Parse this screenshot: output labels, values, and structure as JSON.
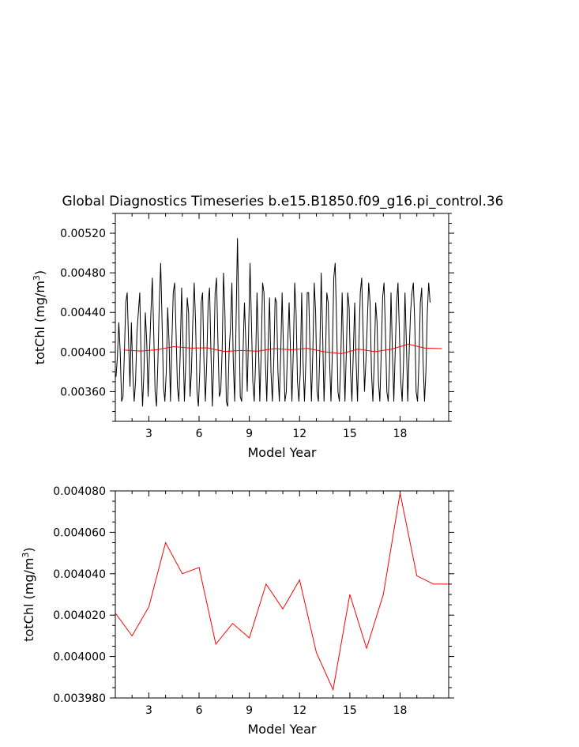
{
  "title": "Global Diagnostics Timeseries b.e15.B1850.f09_g16.pi_control.36",
  "colors": {
    "monthly": "#000000",
    "annual": "#ff0000",
    "axes": "#000000"
  },
  "chart_data": [
    {
      "type": "line",
      "xlabel": "Model Year",
      "ylabel": "totChl (mg/m³)",
      "ylabel_parts": {
        "base": "totChl (mg/m",
        "sup": "3",
        "close": ")"
      },
      "xlim": [
        1,
        20.9
      ],
      "ylim": [
        0.0033,
        0.0054
      ],
      "x_ticks": [
        3,
        6,
        9,
        12,
        15,
        18
      ],
      "x_tick_labels": [
        "3",
        "6",
        "9",
        "12",
        "15",
        "18"
      ],
      "y_ticks": [
        0.0036,
        0.004,
        0.0044,
        0.0048,
        0.0052
      ],
      "y_tick_labels": [
        "0.00360",
        "0.00400",
        "0.00440",
        "0.00480",
        "0.00520"
      ],
      "series": [
        {
          "role": "monthly",
          "color": "#000000",
          "x_start": 1.0417,
          "x_step": 0.083333,
          "values": [
            0.00375,
            0.00395,
            0.0043,
            0.004,
            0.0035,
            0.00355,
            0.004,
            0.0045,
            0.0046,
            0.0041,
            0.00365,
            0.0043,
            0.0038,
            0.0035,
            0.0037,
            0.0042,
            0.0044,
            0.0046,
            0.0039,
            0.00345,
            0.0038,
            0.0044,
            0.0041,
            0.00355,
            0.004,
            0.0044,
            0.00475,
            0.0042,
            0.0036,
            0.00345,
            0.0039,
            0.0045,
            0.0049,
            0.0043,
            0.00365,
            0.0035,
            0.0038,
            0.00445,
            0.0041,
            0.0035,
            0.0041,
            0.0046,
            0.0047,
            0.0042,
            0.00365,
            0.0035,
            0.004,
            0.00465,
            0.0041,
            0.0035,
            0.0039,
            0.00455,
            0.0044,
            0.00355,
            0.0038,
            0.0043,
            0.0047,
            0.0043,
            0.0036,
            0.00345,
            0.0038,
            0.0045,
            0.0046,
            0.0039,
            0.0035,
            0.0039,
            0.0045,
            0.00465,
            0.004,
            0.00345,
            0.0039,
            0.0046,
            0.00475,
            0.0041,
            0.00355,
            0.0036,
            0.004,
            0.0048,
            0.0044,
            0.0035,
            0.00345,
            0.004,
            0.00425,
            0.0047,
            0.0039,
            0.0035,
            0.0043,
            0.00515,
            0.0044,
            0.00355,
            0.0035,
            0.004,
            0.0045,
            0.0041,
            0.0036,
            0.0042,
            0.0049,
            0.0043,
            0.0037,
            0.0035,
            0.0039,
            0.0046,
            0.0041,
            0.0035,
            0.004,
            0.0047,
            0.0046,
            0.0039,
            0.0035,
            0.0041,
            0.00455,
            0.0038,
            0.0035,
            0.0039,
            0.00455,
            0.0045,
            0.0038,
            0.0035,
            0.004,
            0.0046,
            0.004,
            0.0035,
            0.0036,
            0.0041,
            0.0045,
            0.004,
            0.0035,
            0.004,
            0.0047,
            0.0044,
            0.0037,
            0.0035,
            0.0038,
            0.0046,
            0.0039,
            0.0035,
            0.0039,
            0.0046,
            0.0046,
            0.004,
            0.0035,
            0.004,
            0.0047,
            0.0044,
            0.0036,
            0.0035,
            0.004,
            0.0048,
            0.0042,
            0.0035,
            0.0039,
            0.0046,
            0.0045,
            0.0039,
            0.0035,
            0.004,
            0.00475,
            0.0049,
            0.0043,
            0.0036,
            0.0035,
            0.0039,
            0.0046,
            0.004,
            0.0035,
            0.004,
            0.0046,
            0.00445,
            0.0038,
            0.0035,
            0.004,
            0.0045,
            0.0039,
            0.0035,
            0.0041,
            0.0046,
            0.00475,
            0.0042,
            0.0036,
            0.0039,
            0.0043,
            0.0047,
            0.0045,
            0.0038,
            0.0035,
            0.0039,
            0.0045,
            0.0043,
            0.0037,
            0.0035,
            0.004,
            0.00455,
            0.0047,
            0.0042,
            0.0036,
            0.0035,
            0.0039,
            0.0046,
            0.004,
            0.0035,
            0.004,
            0.0045,
            0.0047,
            0.0042,
            0.0037,
            0.0035,
            0.0039,
            0.0046,
            0.0041,
            0.0035,
            0.004,
            0.0044,
            0.0046,
            0.0047,
            0.0043,
            0.0036,
            0.0035,
            0.0039,
            0.0045,
            0.00465,
            0.0039,
            0.0035,
            0.0038,
            0.0044,
            0.0047,
            0.0045
          ]
        },
        {
          "role": "annual",
          "color": "#ff0000",
          "x": [
            1.5,
            2.5,
            3.5,
            4.5,
            5.5,
            6.5,
            7.5,
            8.5,
            9.5,
            10.5,
            11.5,
            12.5,
            13.5,
            14.5,
            15.5,
            16.5,
            17.5,
            18.5,
            19.5,
            20.5
          ],
          "values": [
            0.004021,
            0.00401,
            0.004024,
            0.004055,
            0.00404,
            0.004043,
            0.004006,
            0.004016,
            0.004009,
            0.004035,
            0.004023,
            0.004037,
            0.004002,
            0.003984,
            0.00403,
            0.004004,
            0.00403,
            0.004079,
            0.004039,
            0.004035
          ]
        }
      ]
    },
    {
      "type": "line",
      "xlabel": "Model Year",
      "ylabel": "totChl (mg/m³)",
      "ylabel_parts": {
        "base": "totChl (mg/m",
        "sup": "3",
        "close": ")"
      },
      "xlim": [
        1,
        20.9
      ],
      "ylim": [
        0.00398,
        0.00408
      ],
      "x_ticks": [
        3,
        6,
        9,
        12,
        15,
        18
      ],
      "x_tick_labels": [
        "3",
        "6",
        "9",
        "12",
        "15",
        "18"
      ],
      "y_ticks": [
        0.00398,
        0.004,
        0.00402,
        0.00404,
        0.00406,
        0.00408
      ],
      "y_tick_labels": [
        "0.003980",
        "0.004000",
        "0.004020",
        "0.004040",
        "0.004060",
        "0.004080"
      ],
      "series": [
        {
          "role": "annual",
          "color": "#ff0000",
          "x": [
            1,
            2,
            3,
            4,
            5,
            6,
            7,
            8,
            9,
            10,
            11,
            12,
            13,
            14,
            15,
            16,
            17,
            18,
            19,
            20,
            20.9
          ],
          "values": [
            0.004021,
            0.00401,
            0.004024,
            0.004055,
            0.00404,
            0.004043,
            0.004006,
            0.004016,
            0.004009,
            0.004035,
            0.004023,
            0.004037,
            0.004002,
            0.003984,
            0.00403,
            0.004004,
            0.00403,
            0.004079,
            0.004039,
            0.004035,
            0.004035
          ]
        }
      ]
    }
  ]
}
